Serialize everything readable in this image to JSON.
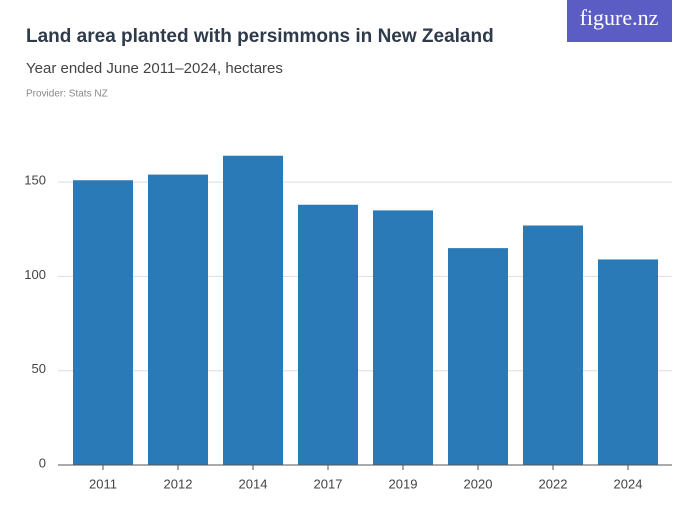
{
  "brand": "figure.nz",
  "chart_data": {
    "type": "bar",
    "title": "Land area planted with persimmons in New Zealand",
    "subtitle": "Year ended June 2011–2024, hectares",
    "provider": "Provider: Stats NZ",
    "categories": [
      "2011",
      "2012",
      "2014",
      "2017",
      "2019",
      "2020",
      "2022",
      "2024"
    ],
    "values": [
      151,
      154,
      164,
      138,
      135,
      115,
      127,
      109
    ],
    "color": "#2a7ab8",
    "ylim": [
      0,
      170
    ],
    "yticks": [
      0,
      50,
      100,
      150
    ],
    "grid": true
  }
}
